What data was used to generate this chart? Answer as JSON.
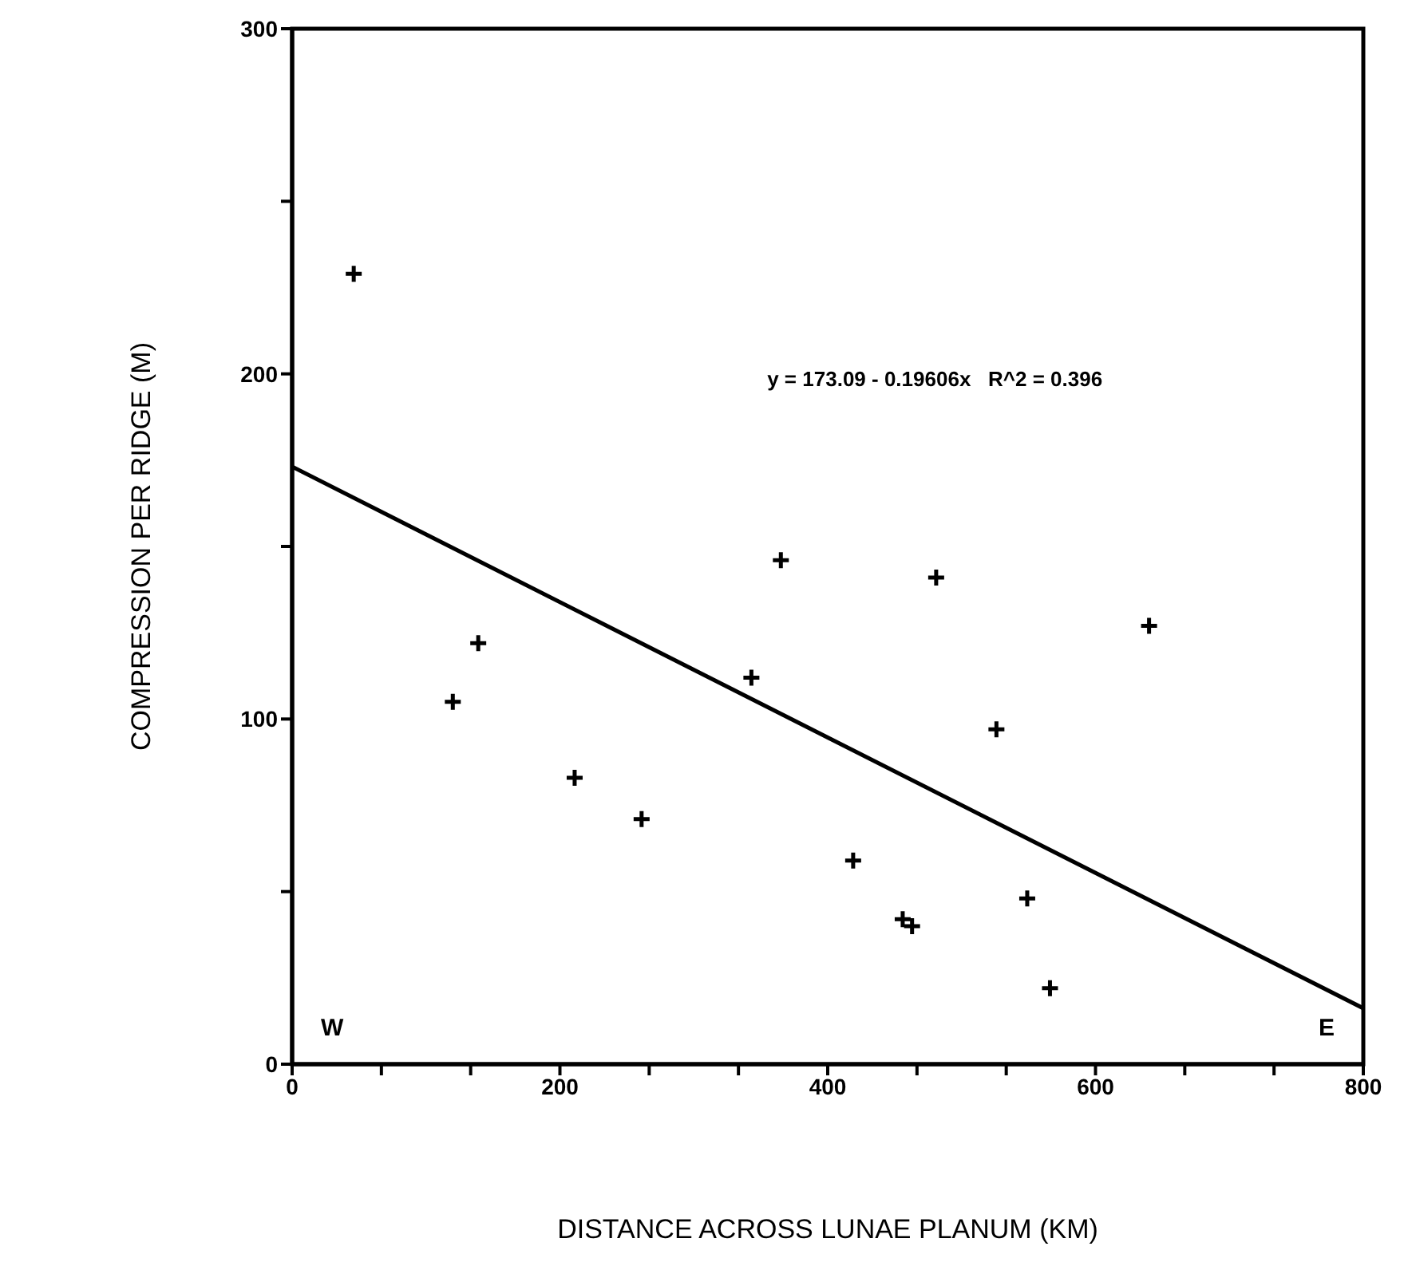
{
  "chart_data": {
    "type": "scatter",
    "xlabel": "DISTANCE ACROSS LUNAE PLANUM (KM)",
    "ylabel": "COMPRESSION PER RIDGE (M)",
    "annotations": [
      "y = 173.09 - 0.19606x   R^2 = 0.396",
      "W",
      "E"
    ],
    "series": [
      {
        "color": "#000000",
        "marker": "cross",
        "x": [
          46,
          120,
          139,
          211,
          261,
          343,
          365,
          419,
          456,
          463,
          481,
          526,
          549,
          566,
          640
        ],
        "values": [
          229,
          105,
          122,
          83,
          71,
          112,
          146,
          59,
          42,
          40,
          141,
          97,
          48,
          22,
          127
        ]
      },
      {
        "type": "line",
        "color": "#000000",
        "marker": "none",
        "line_style": "solid",
        "x": [
          0,
          800
        ],
        "values": [
          173.1,
          16.2
        ]
      }
    ],
    "xlim": [
      0,
      800
    ],
    "ylim": [
      0,
      300
    ],
    "xticks": [
      0,
      {
        "value": 66.67,
        "label": null
      },
      {
        "value": 133.33,
        "label": null
      },
      200,
      {
        "value": 266.67,
        "label": null
      },
      {
        "value": 333.33,
        "label": null
      },
      400,
      {
        "value": 466.67,
        "label": null
      },
      {
        "value": 533.33,
        "label": null
      },
      600,
      {
        "value": 666.67,
        "label": null
      },
      {
        "value": 733.33,
        "label": null
      },
      800
    ],
    "yticks": [
      0,
      {
        "value": 50,
        "label": null
      },
      100,
      {
        "value": 150,
        "label": null
      },
      200,
      {
        "value": 250,
        "label": null
      },
      300
    ],
    "grid": false,
    "legend": false
  }
}
